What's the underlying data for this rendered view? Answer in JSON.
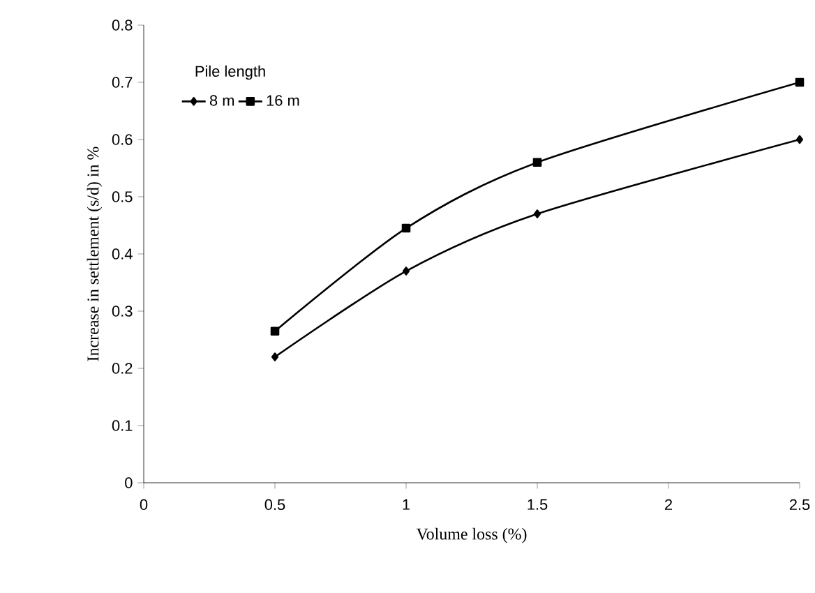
{
  "chart_data": {
    "type": "line",
    "xlabel": "Volume loss (%)",
    "ylabel": "Increase in settlement (s/d) in %",
    "legend_title": "Pile length",
    "x": [
      0.5,
      1,
      1.5,
      2.5
    ],
    "series": [
      {
        "name": "8 m",
        "color": "#000000",
        "marker": "diamond",
        "values": [
          0.22,
          0.37,
          0.47,
          0.6
        ]
      },
      {
        "name": "16 m",
        "color": "#000000",
        "marker": "square",
        "values": [
          0.265,
          0.445,
          0.56,
          0.7
        ]
      }
    ],
    "xlim": [
      0,
      2.5
    ],
    "ylim": [
      0,
      0.8
    ],
    "xticks": [
      0,
      0.5,
      1,
      1.5,
      2,
      2.5
    ],
    "yticks": [
      0,
      0.1,
      0.2,
      0.3,
      0.4,
      0.5,
      0.6,
      0.7,
      0.8
    ],
    "grid": false,
    "legend": "top left",
    "line_style": "solid"
  }
}
